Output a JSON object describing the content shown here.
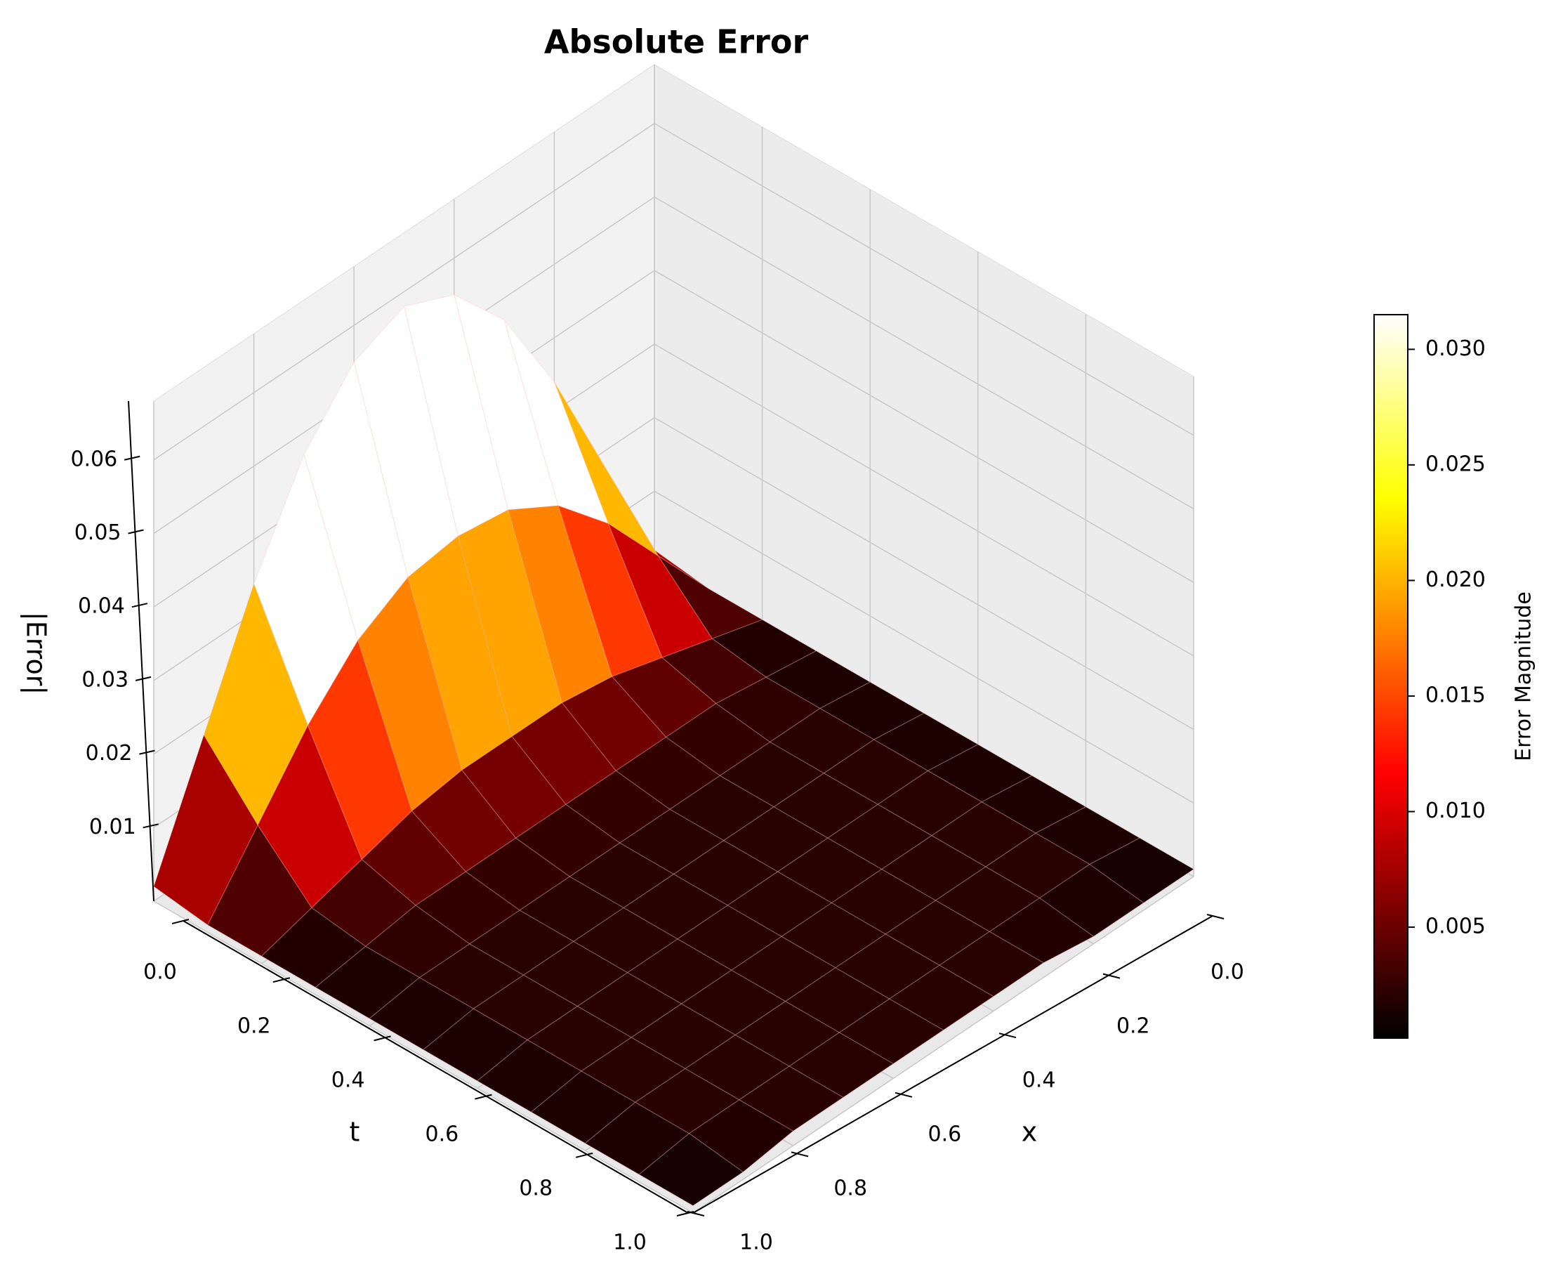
{
  "chart_data": {
    "type": "surface",
    "title": "Absolute Error",
    "xlabel": "x",
    "tlabel": "t",
    "zlabel": "|Error|",
    "colorbar_label": "Error Magnitude",
    "colormap": "hot",
    "x": [
      0,
      0.1,
      0.2,
      0.3,
      0.4,
      0.5,
      0.6,
      0.7,
      0.8,
      0.9,
      1
    ],
    "t": [
      0,
      0.1,
      0.2,
      0.3,
      0.4,
      0.5,
      0.6,
      0.7,
      0.8,
      0.9,
      1
    ],
    "z": [
      [
        0.002,
        0.018,
        0.034,
        0.047,
        0.055,
        0.058,
        0.055,
        0.047,
        0.034,
        0.018,
        0.002
      ],
      [
        0.001,
        0.01,
        0.019,
        0.026,
        0.03,
        0.031,
        0.03,
        0.026,
        0.019,
        0.01,
        0.001
      ],
      [
        0.001,
        0.003,
        0.005,
        0.007,
        0.008,
        0.008,
        0.008,
        0.007,
        0.005,
        0.003,
        0.001
      ],
      [
        0.001,
        0.002,
        0.003,
        0.003,
        0.003,
        0.003,
        0.003,
        0.003,
        0.003,
        0.002,
        0.001
      ],
      [
        0.001,
        0.002,
        0.002,
        0.002,
        0.002,
        0.002,
        0.002,
        0.002,
        0.002,
        0.002,
        0.001
      ],
      [
        0.001,
        0.002,
        0.002,
        0.002,
        0.002,
        0.002,
        0.002,
        0.002,
        0.002,
        0.002,
        0.001
      ],
      [
        0.001,
        0.002,
        0.002,
        0.002,
        0.002,
        0.002,
        0.002,
        0.002,
        0.002,
        0.002,
        0.001
      ],
      [
        0.001,
        0.002,
        0.002,
        0.002,
        0.002,
        0.002,
        0.002,
        0.002,
        0.002,
        0.002,
        0.001
      ],
      [
        0.001,
        0.002,
        0.002,
        0.002,
        0.002,
        0.002,
        0.002,
        0.002,
        0.002,
        0.002,
        0.001
      ],
      [
        0.001,
        0.002,
        0.002,
        0.002,
        0.002,
        0.002,
        0.002,
        0.002,
        0.002,
        0.002,
        0.001
      ],
      [
        0.001,
        0.001,
        0.001,
        0.002,
        0.002,
        0.002,
        0.002,
        0.002,
        0.002,
        0.001,
        0.001
      ]
    ],
    "xlim": [
      0,
      1
    ],
    "tlim": [
      0,
      1
    ],
    "zlim": [
      0,
      0.068
    ],
    "xticks": [
      {
        "value": 0,
        "label": "0.0"
      },
      0.2,
      0.4,
      0.6,
      0.8,
      {
        "value": 1,
        "label": "1.0"
      }
    ],
    "tticks": [
      {
        "value": 0,
        "label": "0.0"
      },
      0.2,
      0.4,
      0.6,
      0.8,
      {
        "value": 1,
        "label": "1.0"
      }
    ],
    "zticks": [
      0.01,
      0.02,
      0.03,
      0.04,
      0.05,
      0.06
    ],
    "clim": [
      0.0002,
      0.0315
    ],
    "cticks": [
      0.005,
      {
        "value": 0.01,
        "label": "0.010"
      },
      0.015,
      {
        "value": 0.02,
        "label": "0.020"
      },
      0.025,
      {
        "value": 0.03,
        "label": "0.030"
      }
    ],
    "grid": true
  }
}
